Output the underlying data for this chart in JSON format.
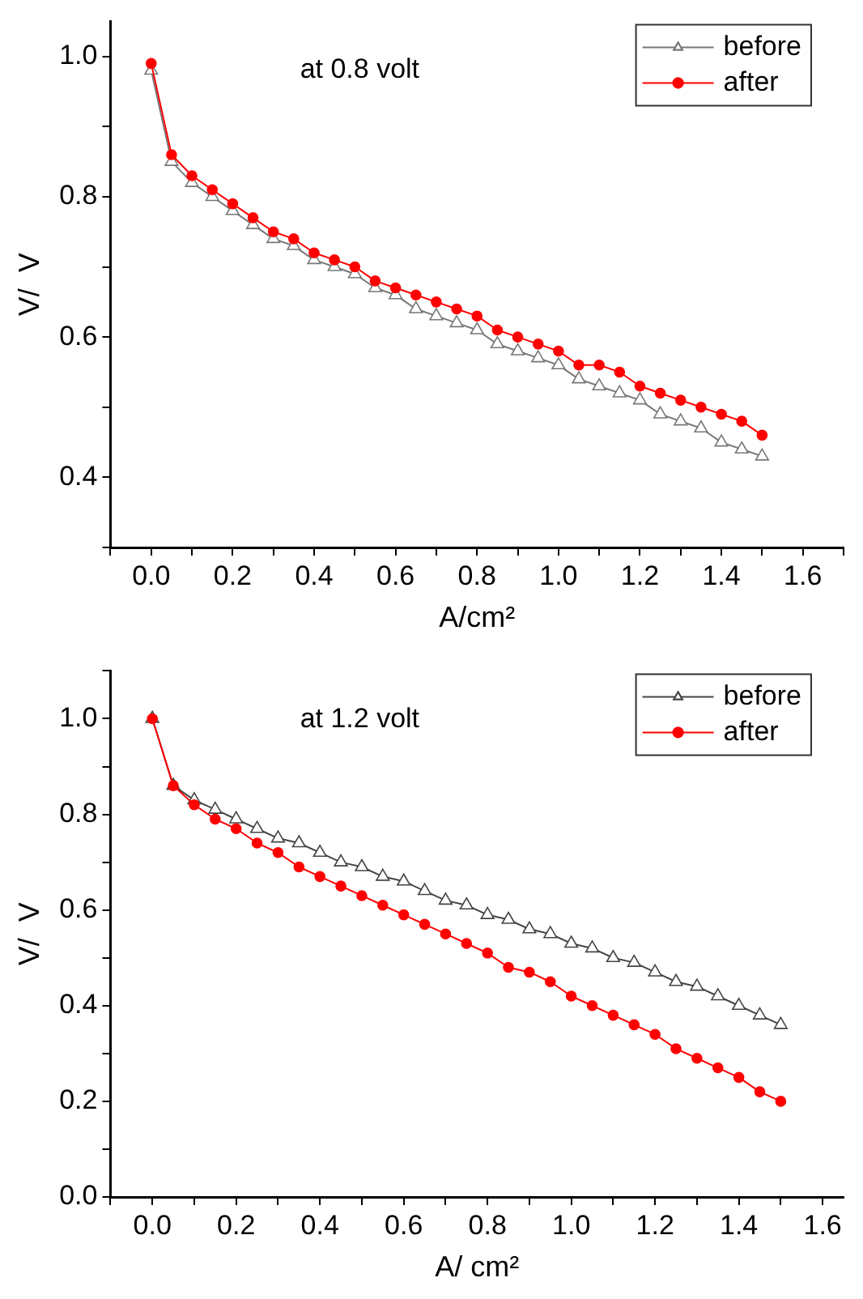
{
  "chart_data": [
    {
      "type": "line",
      "xlabel": "A/cm²",
      "ylabel": "V/  V",
      "annotations": [
        "at 0.8 volt"
      ],
      "legend": "top right",
      "grid": false,
      "x": [
        0,
        0.05,
        0.1,
        0.15,
        0.2,
        0.25,
        0.3,
        0.35,
        0.4,
        0.45,
        0.5,
        0.55,
        0.6,
        0.65,
        0.7,
        0.75,
        0.8,
        0.85,
        0.9,
        0.95,
        1.0,
        1.05,
        1.1,
        1.15,
        1.2,
        1.25,
        1.3,
        1.35,
        1.4,
        1.45,
        1.5
      ],
      "xlim": [
        -0.1,
        1.7
      ],
      "xticks": [
        {
          "value": -0.1,
          "label": null
        },
        {
          "value": 0,
          "label": "0.0"
        },
        {
          "value": 0.1,
          "label": null
        },
        0.2,
        {
          "value": 0.3,
          "label": null
        },
        0.4,
        {
          "value": 0.5,
          "label": null
        },
        0.6,
        {
          "value": 0.7,
          "label": null
        },
        0.8,
        {
          "value": 0.9,
          "label": null
        },
        {
          "value": 1,
          "label": "1.0"
        },
        {
          "value": 1.1,
          "label": null
        },
        1.2,
        {
          "value": 1.3,
          "label": null
        },
        1.4,
        {
          "value": 1.5,
          "label": null
        },
        1.6,
        {
          "value": 1.7,
          "label": null
        }
      ],
      "ylim": [
        0.3,
        1.05
      ],
      "yticks": [
        {
          "value": 0.3,
          "label": null
        },
        0.4,
        {
          "value": 0.5,
          "label": null
        },
        0.6,
        {
          "value": 0.7,
          "label": null
        },
        0.8,
        {
          "value": 0.9,
          "label": null
        },
        {
          "value": 1,
          "label": "1.0"
        }
      ],
      "series": [
        {
          "name": "before",
          "color": "#777777",
          "marker": "triangle",
          "values": [
            0.98,
            0.85,
            0.82,
            0.8,
            0.78,
            0.76,
            0.74,
            0.73,
            0.71,
            0.7,
            0.69,
            0.67,
            0.66,
            0.64,
            0.63,
            0.62,
            0.61,
            0.59,
            0.58,
            0.57,
            0.56,
            0.54,
            0.53,
            0.52,
            0.51,
            0.49,
            0.48,
            0.47,
            0.45,
            0.44,
            0.43
          ]
        },
        {
          "name": "after",
          "color": "#ff0000",
          "marker": "circle",
          "values": [
            0.99,
            0.86,
            0.83,
            0.81,
            0.79,
            0.77,
            0.75,
            0.74,
            0.72,
            0.71,
            0.7,
            0.68,
            0.67,
            0.66,
            0.65,
            0.64,
            0.63,
            0.61,
            0.6,
            0.59,
            0.58,
            0.56,
            0.56,
            0.55,
            0.53,
            0.52,
            0.51,
            0.5,
            0.49,
            0.48,
            0.46
          ]
        }
      ]
    },
    {
      "type": "line",
      "xlabel": "A/ cm²",
      "ylabel": "V/  V",
      "annotations": [
        "at 1.2 volt"
      ],
      "legend": "top right",
      "grid": false,
      "x": [
        0,
        0.05,
        0.1,
        0.15,
        0.2,
        0.25,
        0.3,
        0.35,
        0.4,
        0.45,
        0.5,
        0.55,
        0.6,
        0.65,
        0.7,
        0.75,
        0.8,
        0.85,
        0.9,
        0.95,
        1.0,
        1.05,
        1.1,
        1.15,
        1.2,
        1.25,
        1.3,
        1.35,
        1.4,
        1.45,
        1.5
      ],
      "xlim": [
        -0.1,
        1.65
      ],
      "xticks": [
        {
          "value": -0.1,
          "label": null
        },
        {
          "value": 0,
          "label": "0.0"
        },
        {
          "value": 0.1,
          "label": null
        },
        0.2,
        {
          "value": 0.3,
          "label": null
        },
        0.4,
        {
          "value": 0.5,
          "label": null
        },
        0.6,
        {
          "value": 0.7,
          "label": null
        },
        0.8,
        {
          "value": 0.9,
          "label": null
        },
        {
          "value": 1,
          "label": "1.0"
        },
        {
          "value": 1.1,
          "label": null
        },
        1.2,
        {
          "value": 1.3,
          "label": null
        },
        1.4,
        {
          "value": 1.5,
          "label": null
        },
        1.6
      ],
      "ylim": [
        0.0,
        1.1
      ],
      "yticks": [
        {
          "value": 0,
          "label": "0.0"
        },
        {
          "value": 0.1,
          "label": null
        },
        0.2,
        {
          "value": 0.3,
          "label": null
        },
        0.4,
        {
          "value": 0.5,
          "label": null
        },
        0.6,
        {
          "value": 0.7,
          "label": null
        },
        0.8,
        {
          "value": 0.9,
          "label": null
        },
        {
          "value": 1,
          "label": "1.0"
        },
        {
          "value": 1.1,
          "label": null
        }
      ],
      "series": [
        {
          "name": "before",
          "color": "#444444",
          "marker": "triangle",
          "values": [
            1.0,
            0.86,
            0.83,
            0.81,
            0.79,
            0.77,
            0.75,
            0.74,
            0.72,
            0.7,
            0.69,
            0.67,
            0.66,
            0.64,
            0.62,
            0.61,
            0.59,
            0.58,
            0.56,
            0.55,
            0.53,
            0.52,
            0.5,
            0.49,
            0.47,
            0.45,
            0.44,
            0.42,
            0.4,
            0.38,
            0.36
          ]
        },
        {
          "name": "after",
          "color": "#ff0000",
          "marker": "circle",
          "values": [
            1.0,
            0.86,
            0.82,
            0.79,
            0.77,
            0.74,
            0.72,
            0.69,
            0.67,
            0.65,
            0.63,
            0.61,
            0.59,
            0.57,
            0.55,
            0.53,
            0.51,
            0.48,
            0.47,
            0.45,
            0.42,
            0.4,
            0.38,
            0.36,
            0.34,
            0.31,
            0.29,
            0.27,
            0.25,
            0.22,
            0.2
          ]
        }
      ]
    }
  ]
}
